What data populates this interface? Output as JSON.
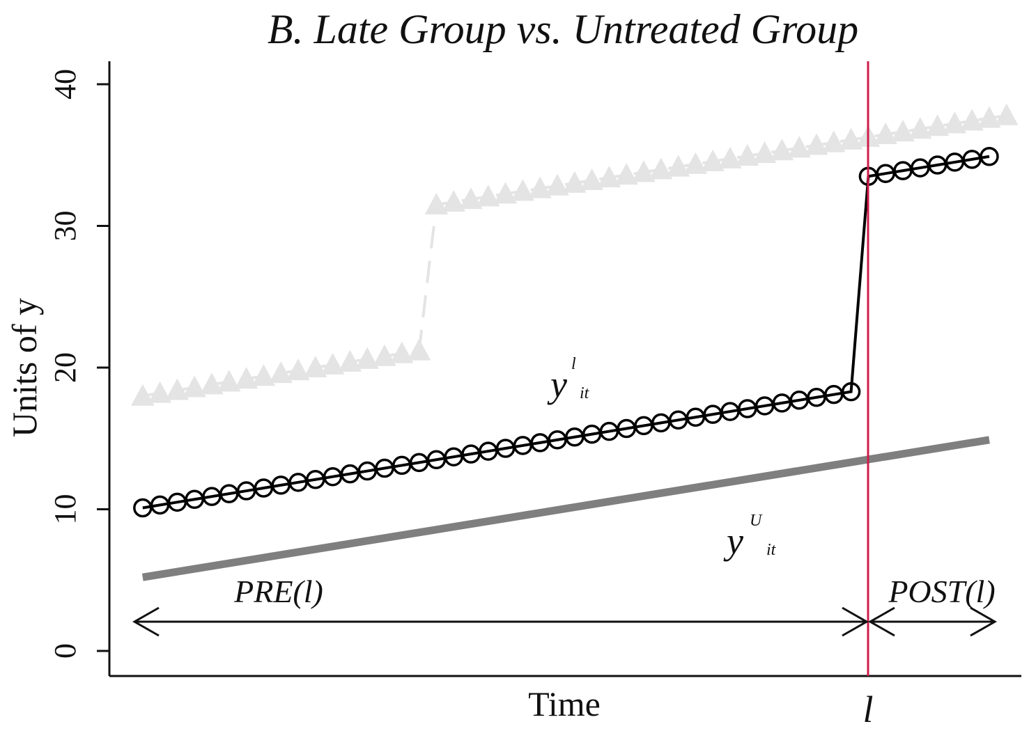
{
  "chart_data": {
    "type": "line",
    "title": "B. Late Group vs. Untreated Group",
    "xlabel": "Time",
    "ylabel": "Units of y",
    "ylim": [
      0,
      40
    ],
    "yticks": [
      "0",
      "10",
      "20",
      "30",
      "40"
    ],
    "treatment_marker": {
      "label": "l",
      "color": "#d01c4a"
    },
    "series": [
      {
        "style": "faded-triangles",
        "color": "#e4e4e4",
        "segments": [
          {
            "x_start": 1,
            "x_end": 17,
            "y_start": 18.0,
            "y_end": 21.2
          },
          {
            "x_start": 18,
            "x_end": 51,
            "y_start": 31.5,
            "y_end": 37.8
          }
        ]
      },
      {
        "style": "circles",
        "color": "#000000",
        "segments": [
          {
            "x_start": 1,
            "x_end": 42,
            "y_start": 10.1,
            "y_end": 18.3
          },
          {
            "x_start": 43,
            "x_end": 50,
            "y_start": 33.5,
            "y_end": 34.9
          }
        ]
      },
      {
        "style": "gray-line",
        "color": "#7f7f7f",
        "segments": [
          {
            "x_start": 1,
            "x_end": 50,
            "y_start": 5.2,
            "y_end": 14.9
          }
        ]
      }
    ],
    "annotations": {
      "y_late": {
        "base": "y",
        "sup": "l",
        "sub": "it"
      },
      "y_untreated": {
        "base": "y",
        "sup": "U",
        "sub": "it"
      },
      "pre": "PRE(l)",
      "post": "POST(l)"
    },
    "grid": false,
    "legend": "none"
  }
}
